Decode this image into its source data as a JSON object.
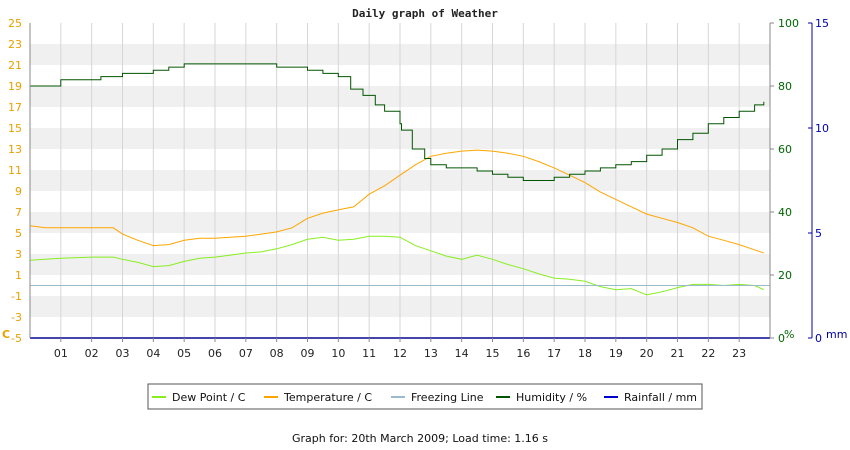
{
  "chart_data": {
    "type": "line",
    "title": "Daily graph of Weather",
    "footer": "Graph for: 20th March 2009; Load time: 1.16 s",
    "x_ticks": [
      "01",
      "02",
      "03",
      "04",
      "05",
      "06",
      "07",
      "08",
      "09",
      "10",
      "11",
      "12",
      "13",
      "14",
      "15",
      "16",
      "17",
      "18",
      "19",
      "20",
      "21",
      "22",
      "23"
    ],
    "xlim": [
      0,
      24
    ],
    "axes": {
      "temperature": {
        "unit_label": "C",
        "range": [
          -5,
          25
        ],
        "ticks": [
          -5,
          -3,
          -1,
          1,
          3,
          5,
          7,
          9,
          11,
          13,
          15,
          17,
          19,
          21,
          23,
          25
        ],
        "color": "#e8a000"
      },
      "humidity": {
        "unit_label": "%",
        "range": [
          0,
          100
        ],
        "ticks": [
          0,
          20,
          40,
          60,
          80,
          100
        ],
        "color": "#006600"
      },
      "rainfall": {
        "unit_label": "mm",
        "range": [
          0,
          15
        ],
        "ticks": [
          0,
          5,
          10,
          15
        ],
        "color": "#0000aa"
      }
    },
    "series": [
      {
        "name": "Dew Point / C",
        "axis": "temperature",
        "color": "#88ee22",
        "x": [
          0,
          1,
          2,
          2.7,
          3,
          3.5,
          4,
          4.5,
          5,
          5.5,
          6,
          6.5,
          7,
          7.5,
          8,
          8.5,
          9,
          9.5,
          10,
          10.5,
          11,
          11.5,
          12,
          12.5,
          13,
          13.5,
          14,
          14.5,
          15,
          15.5,
          16,
          16.5,
          17,
          17.5,
          18,
          18.5,
          19,
          19.5,
          20,
          20.5,
          21,
          21.5,
          22,
          22.5,
          23,
          23.5,
          23.8
        ],
        "y": [
          2.4,
          2.6,
          2.7,
          2.7,
          2.5,
          2.2,
          1.8,
          1.9,
          2.3,
          2.6,
          2.7,
          2.9,
          3.1,
          3.2,
          3.5,
          3.9,
          4.4,
          4.6,
          4.3,
          4.4,
          4.7,
          4.7,
          4.6,
          3.8,
          3.3,
          2.8,
          2.5,
          2.9,
          2.5,
          2.0,
          1.6,
          1.1,
          0.7,
          0.6,
          0.4,
          -0.1,
          -0.4,
          -0.3,
          -0.9,
          -0.6,
          -0.2,
          0.1,
          0.1,
          0.0,
          0.1,
          0.0,
          -0.4
        ]
      },
      {
        "name": "Temperature / C",
        "axis": "temperature",
        "color": "#ffa500",
        "x": [
          0,
          0.5,
          1,
          2,
          2.7,
          3,
          3.5,
          4,
          4.5,
          5,
          5.5,
          6,
          6.5,
          7,
          7.5,
          8,
          8.5,
          9,
          9.5,
          10,
          10.5,
          11,
          11.5,
          12,
          12.5,
          13,
          13.5,
          14,
          14.5,
          15,
          15.5,
          16,
          16.5,
          17,
          17.5,
          18,
          18.5,
          19,
          19.5,
          20,
          20.5,
          21,
          21.5,
          22,
          22.5,
          23,
          23.5,
          23.8
        ],
        "y": [
          5.7,
          5.5,
          5.5,
          5.5,
          5.5,
          4.9,
          4.3,
          3.8,
          3.9,
          4.3,
          4.5,
          4.5,
          4.6,
          4.7,
          4.9,
          5.1,
          5.5,
          6.4,
          6.9,
          7.2,
          7.5,
          8.7,
          9.5,
          10.5,
          11.5,
          12.3,
          12.6,
          12.8,
          12.9,
          12.8,
          12.6,
          12.3,
          11.8,
          11.2,
          10.5,
          9.8,
          8.9,
          8.2,
          7.5,
          6.8,
          6.4,
          6.0,
          5.5,
          4.7,
          4.3,
          3.9,
          3.4,
          3.1
        ]
      },
      {
        "name": "Freezing Line",
        "axis": "temperature",
        "color": "#99bbcc",
        "x": [
          0,
          24
        ],
        "y": [
          0,
          0
        ]
      },
      {
        "name": "Humidity / %",
        "axis": "humidity",
        "color": "#005500",
        "step": true,
        "x": [
          0,
          0.5,
          1,
          2,
          2.3,
          3,
          3.5,
          4,
          4.5,
          5,
          5.5,
          6,
          6.5,
          7,
          7.5,
          8,
          8.5,
          9,
          9.5,
          10,
          10.4,
          10.8,
          11.2,
          11.5,
          12,
          12.05,
          12.4,
          12.8,
          13,
          13.5,
          14,
          14.5,
          15,
          15.5,
          16,
          16.5,
          17,
          17.5,
          18,
          18.5,
          19,
          19.5,
          20,
          20.5,
          21,
          21.5,
          22,
          22.5,
          23,
          23.5,
          23.8
        ],
        "y": [
          80,
          80,
          82,
          82,
          83,
          84,
          84,
          85,
          86,
          87,
          87,
          87,
          87,
          87,
          87,
          86,
          86,
          85,
          84,
          83,
          79,
          77,
          74,
          72,
          68,
          66,
          60,
          57,
          55,
          54,
          54,
          53,
          52,
          51,
          50,
          50,
          51,
          52,
          53,
          54,
          55,
          56,
          58,
          60,
          63,
          65,
          68,
          70,
          72,
          74,
          75
        ]
      },
      {
        "name": "Rainfall / mm",
        "axis": "rainfall",
        "color": "#0000cc",
        "x": [
          0,
          24
        ],
        "y": [
          0,
          0
        ]
      }
    ]
  },
  "legend": [
    {
      "label": "Dew Point / C",
      "color": "#88ee22"
    },
    {
      "label": "Temperature / C",
      "color": "#ffa500"
    },
    {
      "label": "Freezing Line",
      "color": "#99bbcc"
    },
    {
      "label": "Humidity / %",
      "color": "#005500"
    },
    {
      "label": "Rainfall / mm",
      "color": "#0000cc"
    }
  ]
}
